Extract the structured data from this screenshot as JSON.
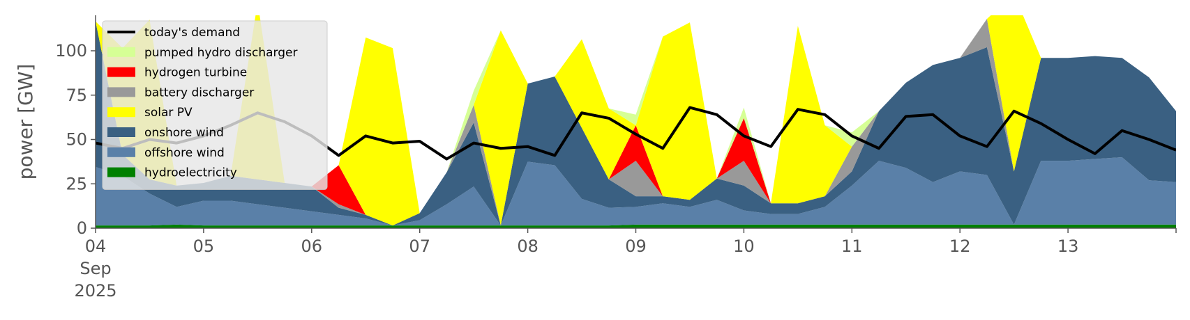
{
  "chart_data": {
    "type": "area",
    "ylabel": "power [GW]",
    "xlabel": "",
    "ylim": [
      0,
      120
    ],
    "xlim": [
      "2025-09-04T00:00",
      "2025-09-14T00:00"
    ],
    "y_ticks": [
      0,
      25,
      50,
      75,
      100
    ],
    "x_ticks": [
      {
        "date": "2025-09-04",
        "label": "04",
        "sublabels": [
          "Sep",
          "2025"
        ]
      },
      {
        "date": "2025-09-05",
        "label": "05"
      },
      {
        "date": "2025-09-06",
        "label": "06"
      },
      {
        "date": "2025-09-07",
        "label": "07"
      },
      {
        "date": "2025-09-08",
        "label": "08"
      },
      {
        "date": "2025-09-09",
        "label": "09"
      },
      {
        "date": "2025-09-10",
        "label": "10"
      },
      {
        "date": "2025-09-11",
        "label": "11"
      },
      {
        "date": "2025-09-12",
        "label": "12"
      },
      {
        "date": "2025-09-13",
        "label": "13"
      }
    ],
    "grid": false,
    "legend_position": "top-left",
    "x_times": [
      "2025-09-04T00:00",
      "2025-09-04T06:00",
      "2025-09-04T12:00",
      "2025-09-04T18:00",
      "2025-09-05T00:00",
      "2025-09-05T06:00",
      "2025-09-05T12:00",
      "2025-09-05T18:00",
      "2025-09-06T00:00",
      "2025-09-06T06:00",
      "2025-09-06T12:00",
      "2025-09-06T18:00",
      "2025-09-07T00:00",
      "2025-09-07T06:00",
      "2025-09-07T12:00",
      "2025-09-07T18:00",
      "2025-09-08T00:00",
      "2025-09-08T06:00",
      "2025-09-08T12:00",
      "2025-09-08T18:00",
      "2025-09-09T00:00",
      "2025-09-09T06:00",
      "2025-09-09T12:00",
      "2025-09-09T18:00",
      "2025-09-10T00:00",
      "2025-09-10T06:00",
      "2025-09-10T12:00",
      "2025-09-10T18:00",
      "2025-09-11T00:00",
      "2025-09-11T06:00",
      "2025-09-11T12:00",
      "2025-09-11T18:00",
      "2025-09-12T00:00",
      "2025-09-12T06:00",
      "2025-09-12T12:00",
      "2025-09-12T18:00",
      "2025-09-13T00:00",
      "2025-09-13T06:00",
      "2025-09-13T12:00",
      "2025-09-13T18:00",
      "2025-09-14T00:00"
    ],
    "series": [
      {
        "name": "hydroelectricity",
        "color": "#008000",
        "type": "area",
        "values": [
          1.5,
          1.5,
          1.5,
          2.0,
          1.5,
          1.5,
          1.5,
          1.5,
          1.5,
          1.5,
          1.5,
          1.5,
          1.5,
          1.5,
          1.5,
          1.5,
          1.5,
          1.5,
          1.5,
          1.5,
          2.0,
          2.0,
          2.0,
          2.0,
          2.0,
          2.0,
          2.0,
          2.0,
          2.0,
          2.0,
          2.0,
          2.0,
          2.0,
          2.0,
          2.0,
          2.0,
          2.0,
          2.0,
          2.0,
          2.0,
          2.0
        ]
      },
      {
        "name": "offshore wind",
        "color": "#5a80a8",
        "type": "area",
        "values": [
          33,
          28,
          18,
          10,
          14,
          14,
          12,
          10,
          8,
          6,
          4,
          0,
          3,
          12,
          22,
          0,
          36,
          34,
          15,
          10,
          10,
          12,
          10,
          14,
          8,
          6,
          6,
          10,
          22,
          36,
          32,
          24,
          30,
          28,
          0,
          36,
          36,
          37,
          38,
          25,
          24
        ]
      },
      {
        "name": "onshore wind",
        "color": "#3a6082",
        "type": "area",
        "values": [
          82,
          12,
          8,
          12,
          10,
          14,
          14,
          14,
          14,
          4,
          2,
          0,
          4,
          18,
          36,
          0,
          44,
          50,
          40,
          16,
          6,
          4,
          4,
          12,
          14,
          6,
          6,
          6,
          8,
          28,
          48,
          66,
          64,
          72,
          30,
          58,
          58,
          58,
          56,
          58,
          40
        ]
      },
      {
        "name": "battery discharger",
        "color": "#999999",
        "type": "area",
        "values": [
          0,
          0,
          0,
          0,
          0,
          0,
          0,
          0,
          0,
          2,
          0,
          0,
          0,
          0,
          10,
          0,
          0,
          0,
          0,
          0,
          20,
          0,
          0,
          0,
          14,
          0,
          0,
          0,
          14,
          0,
          0,
          0,
          0,
          16,
          0,
          0,
          0,
          0,
          0,
          0,
          0
        ]
      },
      {
        "name": "hydrogen turbine",
        "color": "#ff0000",
        "type": "area",
        "values": [
          0,
          0,
          0,
          0,
          0,
          0,
          0,
          0,
          0,
          22,
          0,
          0,
          0,
          0,
          0,
          0,
          0,
          0,
          0,
          0,
          20,
          0,
          0,
          0,
          24,
          0,
          0,
          0,
          0,
          0,
          0,
          0,
          0,
          0,
          0,
          0,
          0,
          0,
          0,
          0,
          0
        ]
      },
      {
        "name": "solar PV",
        "color": "#ffff00",
        "type": "area",
        "values": [
          0,
          60,
          90,
          0,
          0,
          0,
          100,
          0,
          0,
          0,
          100,
          100,
          0,
          0,
          0,
          110,
          0,
          0,
          50,
          40,
          0,
          90,
          100,
          0,
          0,
          0,
          100,
          40,
          0,
          0,
          0,
          0,
          0,
          0,
          100,
          0,
          0,
          0,
          0,
          0,
          0
        ]
      },
      {
        "name": "pumped hydro discharger",
        "color": "#d6ff95",
        "type": "area",
        "values": [
          0,
          0,
          0,
          0,
          0,
          0,
          0,
          0,
          0,
          0,
          0,
          0,
          0,
          0,
          8,
          0,
          0,
          0,
          0,
          0,
          6,
          0,
          0,
          0,
          6,
          0,
          0,
          0,
          8,
          0,
          0,
          0,
          0,
          0,
          0,
          0,
          0,
          0,
          0,
          0,
          0
        ]
      },
      {
        "name": "today's demand",
        "color": "#000000",
        "type": "line",
        "values": [
          48,
          45,
          50,
          48,
          52,
          58,
          65,
          60,
          52,
          41,
          52,
          48,
          49,
          39,
          48,
          45,
          46,
          41,
          65,
          62,
          53,
          45,
          68,
          64,
          52,
          46,
          67,
          64,
          52,
          45,
          63,
          64,
          52,
          46,
          66,
          59,
          50,
          42,
          55,
          50,
          44
        ]
      }
    ]
  }
}
